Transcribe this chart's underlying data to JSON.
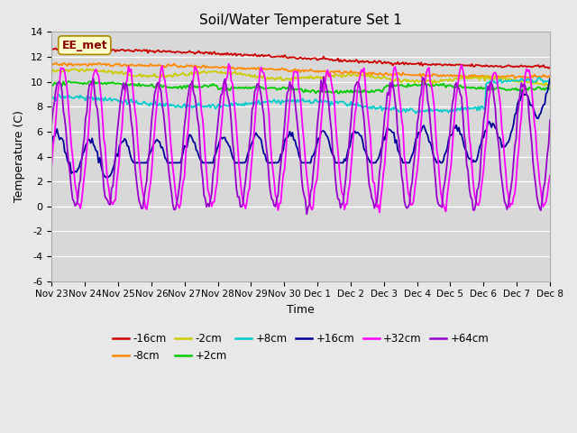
{
  "title": "Soil/Water Temperature Set 1",
  "xlabel": "Time",
  "ylabel": "Temperature (C)",
  "ylim": [
    -6,
    14
  ],
  "annotation": "EE_met",
  "bg_color": "#e8e8e8",
  "plot_bg": "#d8d8d8",
  "grid_color": "#ffffff",
  "series_colors": {
    "-16cm": "#cc0000",
    "-8cm": "#ff8800",
    "-2cm": "#cccc00",
    "+2cm": "#00cc00",
    "+8cm": "#00cccc",
    "+16cm": "#000099",
    "+32cm": "#ff00ff",
    "+64cm": "#9900cc"
  },
  "xtick_labels": [
    "Nov 23",
    "Nov 24",
    "Nov 25",
    "Nov 26",
    "Nov 27",
    "Nov 28",
    "Nov 29",
    "Nov 30",
    "Dec 1",
    "Dec 2",
    "Dec 3",
    "Dec 4",
    "Dec 5",
    "Dec 6",
    "Dec 7",
    "Dec 8"
  ],
  "ytick_labels": [
    "-6",
    "-4",
    "-2",
    "0",
    "2",
    "4",
    "6",
    "8",
    "10",
    "12",
    "14"
  ],
  "ytick_values": [
    -6,
    -4,
    -2,
    0,
    2,
    4,
    6,
    8,
    10,
    12,
    14
  ]
}
